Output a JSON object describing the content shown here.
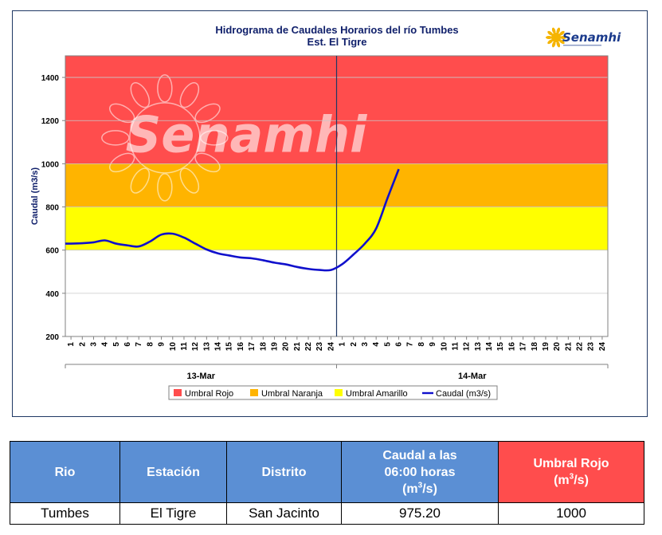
{
  "chart_data": {
    "type": "line",
    "title": "Hidrograma de Caudales Horarios del río Tumbes",
    "subtitle": "Est. El Tigre",
    "ylabel": "Caudal  (m3/s)",
    "ylim": [
      200,
      1500
    ],
    "yticks": [
      200,
      400,
      600,
      800,
      1000,
      1200,
      1400
    ],
    "xlim": [
      0.5,
      48.5
    ],
    "x_ticks": [
      "1",
      "2",
      "3",
      "4",
      "5",
      "6",
      "7",
      "8",
      "9",
      "10",
      "11",
      "12",
      "13",
      "14",
      "15",
      "16",
      "17",
      "18",
      "19",
      "20",
      "21",
      "22",
      "23",
      "24",
      "1",
      "2",
      "3",
      "4",
      "5",
      "6",
      "7",
      "8",
      "9",
      "10",
      "11",
      "12",
      "13",
      "14",
      "15",
      "16",
      "17",
      "18",
      "19",
      "20",
      "21",
      "22",
      "23",
      "24"
    ],
    "day_groups": [
      {
        "label": "13-Mar",
        "from": 1,
        "to": 24
      },
      {
        "label": "14-Mar",
        "from": 25,
        "to": 48
      }
    ],
    "divider_at": 24.5,
    "bands": [
      {
        "name": "Umbral Rojo",
        "from": 1000,
        "to": 1500,
        "color": "#ff4d4d"
      },
      {
        "name": "Umbral Naranja",
        "from": 800,
        "to": 1000,
        "color": "#ffb400"
      },
      {
        "name": "Umbral Amarillo",
        "from": 600,
        "to": 800,
        "color": "#ffff00"
      }
    ],
    "series": [
      {
        "name": "Caudal (m3/s)",
        "color": "#1010cc",
        "x": [
          0.5,
          1,
          2,
          3,
          4,
          5,
          6,
          7,
          8,
          9,
          10,
          11,
          12,
          13,
          14,
          15,
          16,
          17,
          18,
          19,
          20,
          21,
          22,
          23,
          24,
          25,
          26,
          27,
          28,
          29,
          30
        ],
        "values": [
          630,
          630,
          632,
          636,
          645,
          630,
          622,
          617,
          640,
          672,
          676,
          658,
          630,
          603,
          585,
          575,
          566,
          562,
          553,
          542,
          534,
          522,
          513,
          508,
          508,
          535,
          580,
          630,
          700,
          840,
          975
        ]
      }
    ],
    "legend": [
      "Umbral Rojo",
      "Umbral Naranja",
      "Umbral Amarillo",
      "Caudal (m3/s)"
    ],
    "legend_position": "bottom",
    "watermark": "Senamhi",
    "logo_text": "Senamhi"
  },
  "table": {
    "headers": {
      "rio": "Rio",
      "estacion": "Estación",
      "distrito": "Distrito",
      "caudal_line1": "Caudal a las",
      "caudal_line2": "06:00 horas",
      "caudal_unit_pre": "(m",
      "caudal_unit_sup": "3",
      "caudal_unit_post": "/s)",
      "umbral_line1": "Umbral Rojo",
      "umbral_unit_pre": "(m",
      "umbral_unit_sup": "3",
      "umbral_unit_post": "/s)"
    },
    "row": {
      "rio": "Tumbes",
      "estacion": "El Tigre",
      "distrito": "San Jacinto",
      "caudal": "975.20",
      "umbral": "1000"
    }
  }
}
